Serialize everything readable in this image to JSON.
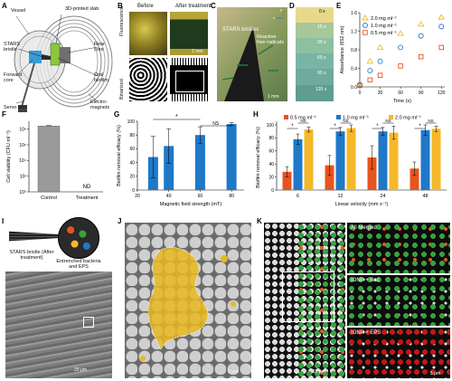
{
  "panel_letters": [
    "A",
    "B",
    "C",
    "D",
    "E",
    "F",
    "G",
    "H",
    "I",
    "J",
    "K"
  ],
  "panelA": {
    "labels": [
      "Vessel",
      "3D-printed slab",
      "STARS bristle",
      "Rear core",
      "Forward core",
      "Oral biofilm",
      "Servo arm",
      "Electro-magnets"
    ]
  },
  "panelB": {
    "col_before": "Before",
    "col_after": "After treatment",
    "row_fluor": "Fluorescence",
    "row_bin": "Binarized",
    "scale": "2 mm"
  },
  "panelC": {
    "title": "STARS bristles",
    "radicals": "Reactive free radicals",
    "scale": "1 mm",
    "axis_x": "x",
    "axis_y": "y"
  },
  "panelD": {
    "times": [
      "0 s",
      "15 s",
      "30 s",
      "60 s",
      "90 s",
      "120 s"
    ]
  },
  "panelE": {
    "ylabel": "Absorbance (652 nm)",
    "xlabel": "Time (s)",
    "legend": [
      "2.0 mg ml⁻¹",
      "1.0 mg ml⁻¹",
      "0.5 mg ml⁻¹"
    ]
  },
  "panelF": {
    "ylabel": "Cell viability (CFU ml⁻¹)",
    "nd": "ND",
    "yticks": [
      "10⁰",
      "10²",
      "10⁴",
      "10⁶",
      "10⁸"
    ]
  },
  "panelG": {
    "ylabel": "Biofilm removal efficacy (%)",
    "xlabel": "Magnetic field strength (mT)",
    "sig": "*",
    "ns": "NS"
  },
  "panelH": {
    "ylabel": "Biofilm removal efficacy (%)",
    "xlabel": "Linear velocity (mm s⁻¹)",
    "legend": [
      "0.5 mg ml⁻¹",
      "1.0 mg ml⁻¹",
      "2.0 mg ml⁻¹"
    ],
    "sig": "*",
    "ns": "NS"
  },
  "panelI": {
    "bristle": "STARS bristle (After treatment)",
    "entrenched": "Entrenched bacteria and EPS",
    "scale": "20 μm"
  },
  "panelJ": {
    "scale": "2 μm"
  },
  "panelK": {
    "merged": "All Merged",
    "iop_bac": "IONP + Bac",
    "iop_eps": "IONP + EPS",
    "scale1": "10 μm",
    "scale2": "5 μm"
  },
  "colors": {
    "orange": "#e8541e",
    "blue": "#1f78c8",
    "yellow": "#f5b828",
    "gray": "#9a9a9a"
  },
  "chart_data": [
    {
      "id": "E",
      "type": "scatter",
      "x_label": "Time (s)",
      "y_label": "Absorbance (652 nm)",
      "xlim": [
        0,
        125
      ],
      "ylim": [
        0,
        1.6
      ],
      "xticks": [
        0,
        30,
        60,
        90,
        120
      ],
      "yticks": [
        0,
        0.4,
        0.8,
        1.2,
        1.6
      ],
      "series": [
        {
          "name": "2.0 mg ml⁻¹",
          "marker": "triangle",
          "color": "#f5b828",
          "x": [
            0,
            15,
            30,
            60,
            90,
            120
          ],
          "y": [
            0.05,
            0.55,
            0.85,
            1.15,
            1.35,
            1.5
          ]
        },
        {
          "name": "1.0 mg ml⁻¹",
          "marker": "circle",
          "color": "#1f78c8",
          "x": [
            0,
            15,
            30,
            60,
            90,
            120
          ],
          "y": [
            0.05,
            0.35,
            0.55,
            0.85,
            1.1,
            1.3
          ]
        },
        {
          "name": "0.5 mg ml⁻¹",
          "marker": "square",
          "color": "#e8541e",
          "x": [
            0,
            15,
            30,
            60,
            90,
            120
          ],
          "y": [
            0.03,
            0.15,
            0.25,
            0.45,
            0.65,
            0.85
          ]
        }
      ]
    },
    {
      "id": "F",
      "type": "bar",
      "categories": [
        "Control",
        "Treatment"
      ],
      "values": [
        250000000.0,
        0
      ],
      "errors": [
        30000000.0,
        0
      ],
      "y_label": "Cell viability (CFU ml⁻¹)",
      "yscale": "log",
      "ylim": [
        1,
        1000000000.0
      ],
      "annotation": "ND"
    },
    {
      "id": "G",
      "type": "bar",
      "x": [
        30,
        40,
        60,
        80
      ],
      "values": [
        48,
        64,
        80,
        96
      ],
      "errors": [
        30,
        25,
        12,
        2
      ],
      "y_label": "Biofilm removal efficacy (%)",
      "x_label": "Magnetic field strength (mT)",
      "ylim": [
        0,
        100
      ],
      "yticks": [
        0,
        20,
        40,
        60,
        80,
        100
      ],
      "xticks": [
        20,
        40,
        60,
        80
      ],
      "xlim": [
        20,
        88
      ]
    },
    {
      "id": "H",
      "type": "bar",
      "categories": [
        "6",
        "12",
        "24",
        "48"
      ],
      "y_label": "Biofilm removal efficacy (%)",
      "x_label": "Linear velocity (mm s⁻¹)",
      "ylim": [
        0,
        100
      ],
      "yticks": [
        0,
        20,
        40,
        60,
        80,
        100
      ],
      "series": [
        {
          "name": "0.5 mg ml⁻¹",
          "color": "#e8541e",
          "values": [
            28,
            38,
            50,
            33
          ],
          "errors": [
            8,
            15,
            18,
            10
          ]
        },
        {
          "name": "1.0 mg ml⁻¹",
          "color": "#1f78c8",
          "values": [
            78,
            90,
            90,
            92
          ],
          "errors": [
            8,
            6,
            6,
            8
          ]
        },
        {
          "name": "2.0 mg ml⁻¹",
          "color": "#f5b828",
          "values": [
            93,
            95,
            88,
            94
          ],
          "errors": [
            4,
            5,
            10,
            4
          ]
        }
      ]
    }
  ]
}
